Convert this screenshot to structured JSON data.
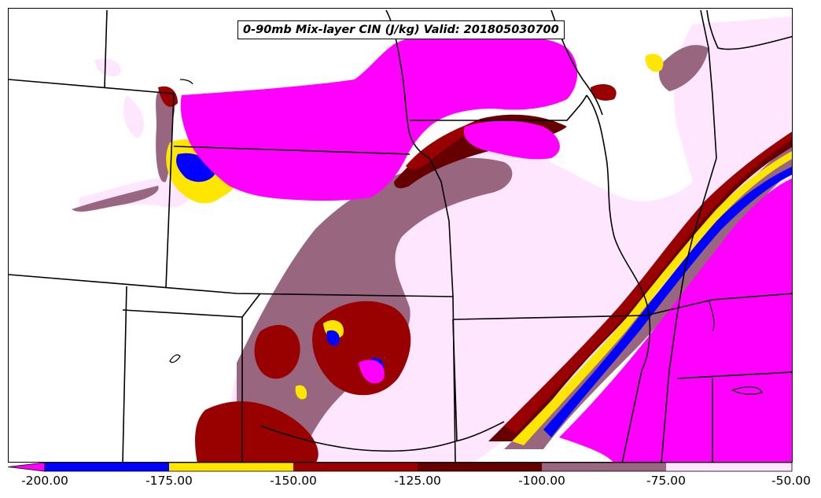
{
  "map": {
    "title": "0-90mb Mix-layer CIN (J/kg) Valid: 201805030700",
    "field": "cin-fill",
    "basemap": "state-boundaries"
  },
  "colorbar": {
    "extend": "min",
    "levels": [
      -200,
      -175,
      -150,
      -125,
      -100,
      -75,
      -50
    ],
    "colors": {
      "below": "#ff00ff",
      "lt_m175": "#0000ff",
      "lt_m150": "#ffe600",
      "lt_m125": "#990000",
      "lt_m100": "#660000",
      "lt_m75": "#996680",
      "lt_m50": "#ffe6ff"
    },
    "tick_labels": [
      "-200.00",
      "-175.00",
      "-150.00",
      "-125.00",
      "-100.00",
      "-75.00",
      "-50.00"
    ]
  }
}
